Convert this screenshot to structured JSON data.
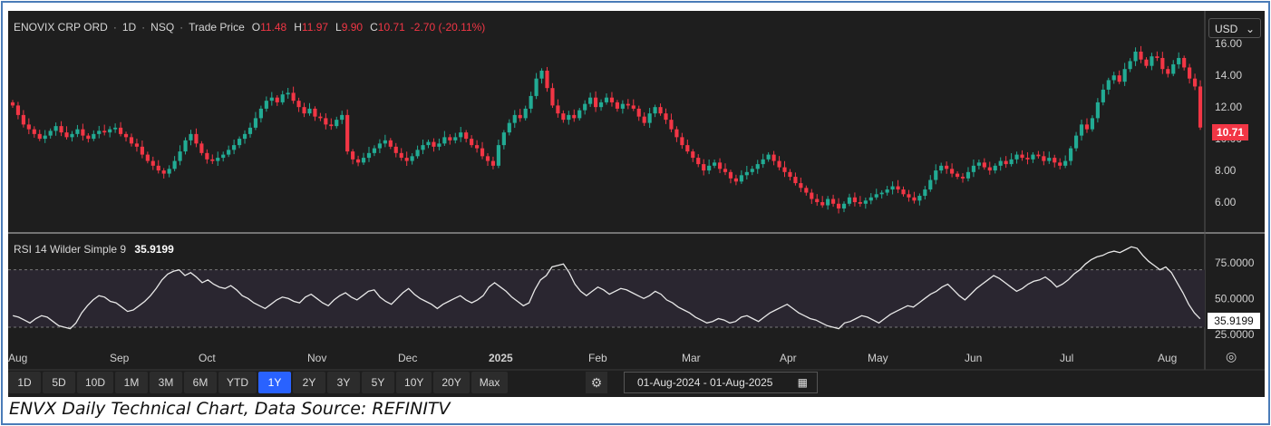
{
  "header": {
    "symbol": "ENOVIX CRP ORD",
    "interval": "1D",
    "exchange": "NSQ",
    "price_type": "Trade Price",
    "o_label": "O",
    "o_value": "11.48",
    "h_label": "H",
    "h_value": "11.97",
    "l_label": "L",
    "l_value": "9.90",
    "c_label": "C",
    "c_value": "10.71",
    "change": "-2.70 (-20.11%)"
  },
  "currency": "USD",
  "last_price_label": "10.71",
  "rsi": {
    "label": "RSI 14 Wilder Simple 9",
    "value": "35.9199"
  },
  "toolbar": {
    "ranges": [
      "1D",
      "5D",
      "10D",
      "1M",
      "3M",
      "6M",
      "YTD",
      "1Y",
      "2Y",
      "3Y",
      "5Y",
      "10Y",
      "20Y",
      "Max"
    ],
    "active": "1Y",
    "date_range": "01-Aug-2024  -  01-Aug-2025",
    "settings_icon": "gear-icon",
    "calendar_icon": "calendar-icon"
  },
  "caption": "ENVX Daily Technical Chart, Data Source: REFINITV",
  "colors": {
    "up": "#22ab94",
    "down": "#f23645",
    "bg": "#1e1e1e",
    "rsi_line": "#e8e8e8",
    "rsi_band": "#2a2630"
  },
  "chart_data": [
    {
      "type": "candlestick",
      "x_ticks": [
        "Aug",
        "Sep",
        "Oct",
        "Nov",
        "Dec",
        "2025",
        "Feb",
        "Mar",
        "Apr",
        "May",
        "Jun",
        "Jul",
        "Aug"
      ],
      "y_ticks": [
        6.0,
        8.0,
        10.0,
        12.0,
        14.0,
        16.0
      ],
      "ylim": [
        4.0,
        17.5
      ],
      "close": [
        12.1,
        11.5,
        10.9,
        10.6,
        10.3,
        10.0,
        10.2,
        10.5,
        10.8,
        10.4,
        10.1,
        10.3,
        10.6,
        10.2,
        10.0,
        10.3,
        10.5,
        10.4,
        10.6,
        10.7,
        10.3,
        10.1,
        9.7,
        9.5,
        9.0,
        8.6,
        8.3,
        8.0,
        7.8,
        8.1,
        8.6,
        9.2,
        9.9,
        10.3,
        9.7,
        9.1,
        8.7,
        8.6,
        8.8,
        9.0,
        9.3,
        9.6,
        10.0,
        10.3,
        10.7,
        11.3,
        11.9,
        12.4,
        12.6,
        12.3,
        12.8,
        12.9,
        12.4,
        12.0,
        11.6,
        11.9,
        11.4,
        11.3,
        10.9,
        10.8,
        11.2,
        11.5,
        9.2,
        8.7,
        8.5,
        8.8,
        9.1,
        9.4,
        9.7,
        9.9,
        9.5,
        9.1,
        8.8,
        8.6,
        8.9,
        9.3,
        9.6,
        9.8,
        9.5,
        9.7,
        10.1,
        9.9,
        10.1,
        10.4,
        10.0,
        9.6,
        9.4,
        8.9,
        8.6,
        8.3,
        9.6,
        10.4,
        11.0,
        11.5,
        11.3,
        11.9,
        12.7,
        13.8,
        14.3,
        13.2,
        12.1,
        11.6,
        11.2,
        11.5,
        11.3,
        11.8,
        12.2,
        12.6,
        12.0,
        12.3,
        12.6,
        12.3,
        11.9,
        12.2,
        12.1,
        11.9,
        11.4,
        11.0,
        11.6,
        12.0,
        11.6,
        11.2,
        10.6,
        10.1,
        9.6,
        9.2,
        8.8,
        8.4,
        8.0,
        8.3,
        8.5,
        8.1,
        7.9,
        7.5,
        7.3,
        7.7,
        7.9,
        8.1,
        8.4,
        8.7,
        9.0,
        8.6,
        8.2,
        7.9,
        7.6,
        7.2,
        6.9,
        6.6,
        6.2,
        6.0,
        5.8,
        6.2,
        5.9,
        5.6,
        5.9,
        6.3,
        6.0,
        5.9,
        6.1,
        6.3,
        6.5,
        6.6,
        6.8,
        7.0,
        6.8,
        6.5,
        6.3,
        6.1,
        6.4,
        6.8,
        7.4,
        8.0,
        8.3,
        8.1,
        7.8,
        7.6,
        7.5,
        7.9,
        8.3,
        8.5,
        8.2,
        8.0,
        8.3,
        8.6,
        8.4,
        8.7,
        9.0,
        8.8,
        8.7,
        9.0,
        8.9,
        8.6,
        8.8,
        8.5,
        8.3,
        8.6,
        9.4,
        10.2,
        10.9,
        10.6,
        11.3,
        12.3,
        13.1,
        13.7,
        14.0,
        13.6,
        14.4,
        14.9,
        15.5,
        15.0,
        14.6,
        15.2,
        15.1,
        14.4,
        14.1,
        14.7,
        15.1,
        14.5,
        13.8,
        13.3,
        10.71
      ]
    },
    {
      "type": "line",
      "name": "RSI 14 Wilder Simple 9",
      "y_ticks": [
        25.0,
        50.0,
        75.0
      ],
      "ylim": [
        18,
        90
      ],
      "overbought": 70,
      "oversold": 30,
      "values": [
        38,
        37,
        35,
        33,
        36,
        38,
        37,
        34,
        31,
        30,
        29,
        33,
        40,
        45,
        49,
        52,
        51,
        48,
        47,
        44,
        41,
        42,
        45,
        48,
        52,
        57,
        63,
        67,
        69,
        70,
        66,
        68,
        65,
        61,
        63,
        60,
        58,
        57,
        59,
        56,
        52,
        50,
        47,
        45,
        43,
        46,
        49,
        51,
        50,
        48,
        47,
        51,
        53,
        50,
        47,
        45,
        49,
        52,
        54,
        51,
        49,
        52,
        55,
        56,
        51,
        48,
        46,
        50,
        54,
        57,
        53,
        50,
        48,
        46,
        43,
        46,
        48,
        50,
        52,
        49,
        47,
        49,
        52,
        58,
        61,
        58,
        55,
        51,
        48,
        45,
        47,
        56,
        63,
        66,
        72,
        73,
        74,
        68,
        60,
        55,
        52,
        55,
        58,
        56,
        53,
        55,
        57,
        56,
        54,
        52,
        50,
        52,
        55,
        53,
        49,
        47,
        44,
        42,
        40,
        37,
        35,
        33,
        34,
        36,
        35,
        33,
        34,
        37,
        38,
        36,
        34,
        37,
        40,
        42,
        44,
        46,
        43,
        40,
        38,
        36,
        35,
        33,
        31,
        30,
        29,
        33,
        34,
        36,
        38,
        37,
        35,
        33,
        36,
        39,
        41,
        43,
        45,
        44,
        47,
        50,
        53,
        55,
        58,
        60,
        56,
        52,
        49,
        53,
        57,
        60,
        63,
        66,
        64,
        61,
        58,
        55,
        57,
        60,
        62,
        63,
        65,
        62,
        58,
        60,
        63,
        67,
        70,
        74,
        77,
        79,
        80,
        82,
        83,
        82,
        84,
        86,
        85,
        80,
        76,
        73,
        70,
        72,
        68,
        61,
        54,
        46,
        40,
        35.9
      ]
    }
  ]
}
